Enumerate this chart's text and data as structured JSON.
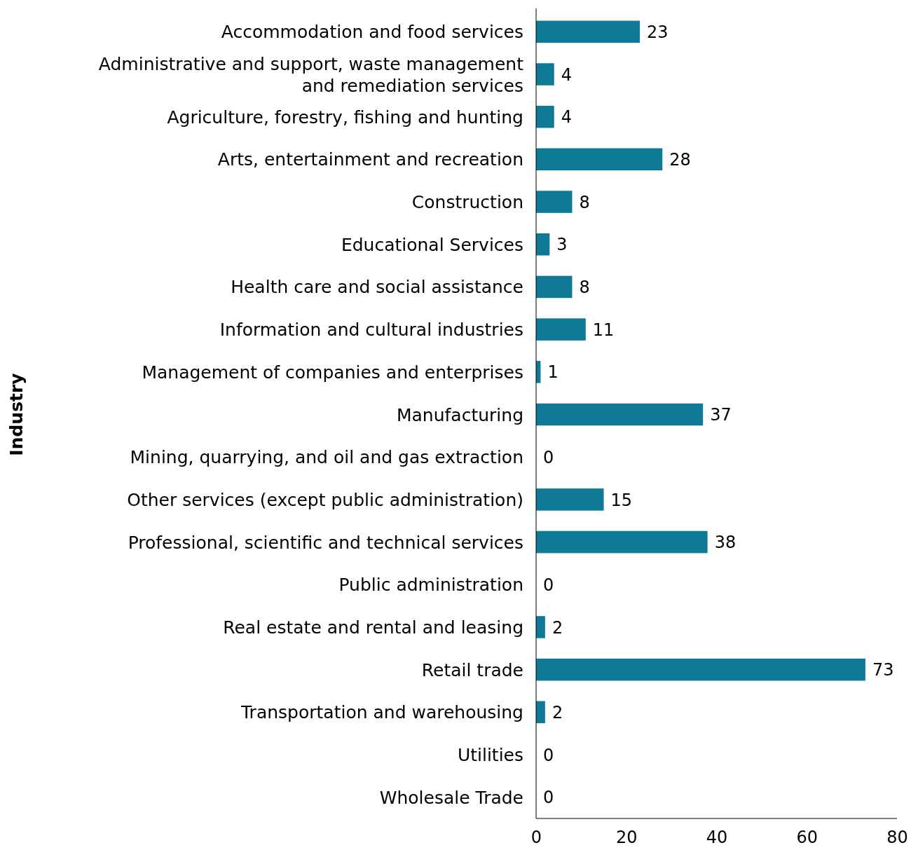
{
  "chart_data": {
    "type": "bar",
    "orientation": "horizontal",
    "ylabel": "Industry",
    "categories": [
      "Accommodation and food services",
      "Administrative and support, waste management and remediation services",
      "Agriculture, forestry, fishing and hunting",
      "Arts, entertainment and recreation",
      "Construction",
      "Educational Services",
      "Health care and social assistance",
      "Information and cultural industries",
      "Management of companies and enterprises",
      "Manufacturing",
      "Mining, quarrying, and oil and gas extraction",
      "Other services (except public administration)",
      "Professional, scientific and technical services",
      "Public administration",
      "Real estate and rental and leasing",
      "Retail trade",
      "Transportation and warehousing",
      "Utilities",
      "Wholesale Trade"
    ],
    "values": [
      23,
      4,
      4,
      28,
      8,
      3,
      8,
      11,
      1,
      37,
      0,
      15,
      38,
      0,
      2,
      73,
      2,
      0,
      0
    ],
    "color": "#0e7a96",
    "xlim": [
      0,
      80
    ],
    "xticks": [
      0,
      20,
      40,
      60,
      80
    ],
    "data_labels": true,
    "grid": false
  }
}
